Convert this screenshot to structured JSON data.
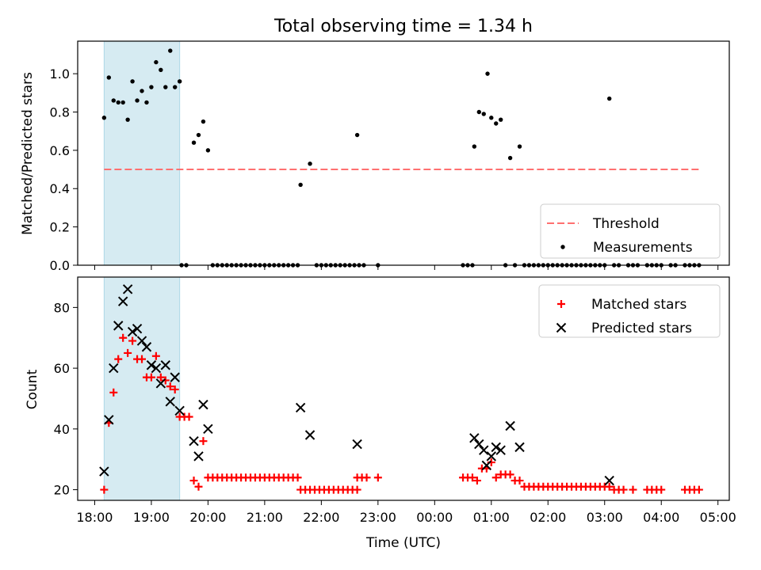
{
  "figure": {
    "title": "Total observing time = 1.34 h",
    "xlabel": "Time (UTC)",
    "x_tick_labels": [
      "18:00",
      "19:00",
      "20:00",
      "21:00",
      "22:00",
      "23:00",
      "00:00",
      "01:00",
      "02:00",
      "03:00",
      "04:00",
      "05:00"
    ],
    "shade_color": "#add8e6"
  },
  "chart_data": [
    {
      "type": "scatter",
      "ylabel": "Matched/Predicted stars",
      "ylim": [
        0,
        1.17
      ],
      "yticks": [
        0.0,
        0.2,
        0.4,
        0.6,
        0.8,
        1.0
      ],
      "ytick_labels": [
        "0.0",
        "0.2",
        "0.4",
        "0.6",
        "0.8",
        "1.0"
      ],
      "xlim": [
        "17:42",
        "05:12"
      ],
      "shaded_region": [
        "18:10",
        "19:30"
      ],
      "threshold": {
        "value": 0.5,
        "x_start": "18:10",
        "x_end": "04:40",
        "color": "#ff7070"
      },
      "legend": {
        "placement": "lower right",
        "entries": [
          "Threshold",
          "Measurements"
        ]
      },
      "series": [
        {
          "name": "Measurements",
          "color": "#000000",
          "points": [
            [
              "18:10",
              0.77
            ],
            [
              "18:15",
              0.98
            ],
            [
              "18:20",
              0.86
            ],
            [
              "18:25",
              0.85
            ],
            [
              "18:30",
              0.85
            ],
            [
              "18:35",
              0.76
            ],
            [
              "18:40",
              0.96
            ],
            [
              "18:45",
              0.86
            ],
            [
              "18:50",
              0.91
            ],
            [
              "18:55",
              0.85
            ],
            [
              "19:00",
              0.93
            ],
            [
              "19:05",
              1.06
            ],
            [
              "19:10",
              1.02
            ],
            [
              "19:15",
              0.93
            ],
            [
              "19:20",
              1.12
            ],
            [
              "19:25",
              0.93
            ],
            [
              "19:30",
              0.96
            ],
            [
              "19:32",
              0.0
            ],
            [
              "19:37",
              0.0
            ],
            [
              "19:45",
              0.64
            ],
            [
              "19:50",
              0.68
            ],
            [
              "19:55",
              0.75
            ],
            [
              "20:00",
              0.6
            ],
            [
              "20:05",
              0.0
            ],
            [
              "20:10",
              0.0
            ],
            [
              "20:15",
              0.0
            ],
            [
              "20:20",
              0.0
            ],
            [
              "20:25",
              0.0
            ],
            [
              "20:30",
              0.0
            ],
            [
              "20:35",
              0.0
            ],
            [
              "20:40",
              0.0
            ],
            [
              "20:45",
              0.0
            ],
            [
              "20:50",
              0.0
            ],
            [
              "20:55",
              0.0
            ],
            [
              "21:00",
              0.0
            ],
            [
              "21:05",
              0.0
            ],
            [
              "21:10",
              0.0
            ],
            [
              "21:15",
              0.0
            ],
            [
              "21:20",
              0.0
            ],
            [
              "21:25",
              0.0
            ],
            [
              "21:30",
              0.0
            ],
            [
              "21:35",
              0.0
            ],
            [
              "21:38",
              0.42
            ],
            [
              "21:48",
              0.53
            ],
            [
              "21:55",
              0.0
            ],
            [
              "22:00",
              0.0
            ],
            [
              "22:05",
              0.0
            ],
            [
              "22:10",
              0.0
            ],
            [
              "22:15",
              0.0
            ],
            [
              "22:20",
              0.0
            ],
            [
              "22:25",
              0.0
            ],
            [
              "22:30",
              0.0
            ],
            [
              "22:35",
              0.0
            ],
            [
              "22:40",
              0.0
            ],
            [
              "22:45",
              0.0
            ],
            [
              "22:38",
              0.68
            ],
            [
              "23:00",
              0.0
            ],
            [
              "00:30",
              0.0
            ],
            [
              "00:35",
              0.0
            ],
            [
              "00:40",
              0.0
            ],
            [
              "00:42",
              0.62
            ],
            [
              "00:47",
              0.8
            ],
            [
              "00:52",
              0.79
            ],
            [
              "00:56",
              1.0
            ],
            [
              "01:00",
              0.77
            ],
            [
              "01:05",
              0.74
            ],
            [
              "01:10",
              0.76
            ],
            [
              "01:20",
              0.56
            ],
            [
              "01:30",
              0.62
            ],
            [
              "01:15",
              0.0
            ],
            [
              "01:25",
              0.0
            ],
            [
              "01:35",
              0.0
            ],
            [
              "01:40",
              0.0
            ],
            [
              "01:45",
              0.0
            ],
            [
              "01:50",
              0.0
            ],
            [
              "01:55",
              0.0
            ],
            [
              "02:00",
              0.0
            ],
            [
              "02:05",
              0.0
            ],
            [
              "02:10",
              0.0
            ],
            [
              "02:15",
              0.0
            ],
            [
              "02:20",
              0.0
            ],
            [
              "02:25",
              0.0
            ],
            [
              "02:30",
              0.0
            ],
            [
              "02:35",
              0.0
            ],
            [
              "02:40",
              0.0
            ],
            [
              "02:45",
              0.0
            ],
            [
              "02:50",
              0.0
            ],
            [
              "02:55",
              0.0
            ],
            [
              "03:00",
              0.0
            ],
            [
              "03:05",
              0.87
            ],
            [
              "03:10",
              0.0
            ],
            [
              "03:15",
              0.0
            ],
            [
              "03:25",
              0.0
            ],
            [
              "03:30",
              0.0
            ],
            [
              "03:35",
              0.0
            ],
            [
              "03:45",
              0.0
            ],
            [
              "03:50",
              0.0
            ],
            [
              "03:55",
              0.0
            ],
            [
              "04:00",
              0.0
            ],
            [
              "04:10",
              0.0
            ],
            [
              "04:15",
              0.0
            ],
            [
              "04:25",
              0.0
            ],
            [
              "04:30",
              0.0
            ],
            [
              "04:35",
              0.0
            ],
            [
              "04:40",
              0.0
            ]
          ]
        }
      ]
    },
    {
      "type": "scatter",
      "ylabel": "Count",
      "ylim": [
        16.5,
        90
      ],
      "yticks": [
        20,
        40,
        60,
        80
      ],
      "ytick_labels": [
        "20",
        "40",
        "60",
        "80"
      ],
      "xlim": [
        "17:42",
        "05:12"
      ],
      "shaded_region": [
        "18:10",
        "19:30"
      ],
      "legend": {
        "placement": "upper right",
        "entries": [
          "Matched stars",
          "Predicted stars"
        ]
      },
      "series": [
        {
          "name": "Matched stars",
          "marker": "plus",
          "color": "#ff0000",
          "points": [
            [
              "18:10",
              20
            ],
            [
              "18:15",
              42
            ],
            [
              "18:20",
              52
            ],
            [
              "18:25",
              63
            ],
            [
              "18:30",
              70
            ],
            [
              "18:35",
              65
            ],
            [
              "18:40",
              69
            ],
            [
              "18:45",
              63
            ],
            [
              "18:50",
              63
            ],
            [
              "18:55",
              57
            ],
            [
              "19:00",
              57
            ],
            [
              "19:05",
              64
            ],
            [
              "19:10",
              57
            ],
            [
              "19:15",
              56
            ],
            [
              "19:20",
              54
            ],
            [
              "19:25",
              53
            ],
            [
              "19:30",
              44
            ],
            [
              "19:35",
              44
            ],
            [
              "19:40",
              44
            ],
            [
              "19:45",
              23
            ],
            [
              "19:50",
              21
            ],
            [
              "19:55",
              36
            ],
            [
              "20:00",
              24
            ],
            [
              "20:05",
              24
            ],
            [
              "20:10",
              24
            ],
            [
              "20:15",
              24
            ],
            [
              "20:20",
              24
            ],
            [
              "20:25",
              24
            ],
            [
              "20:30",
              24
            ],
            [
              "20:35",
              24
            ],
            [
              "20:40",
              24
            ],
            [
              "20:45",
              24
            ],
            [
              "20:50",
              24
            ],
            [
              "20:55",
              24
            ],
            [
              "21:00",
              24
            ],
            [
              "21:05",
              24
            ],
            [
              "21:10",
              24
            ],
            [
              "21:15",
              24
            ],
            [
              "21:20",
              24
            ],
            [
              "21:25",
              24
            ],
            [
              "21:30",
              24
            ],
            [
              "21:35",
              24
            ],
            [
              "21:38",
              20
            ],
            [
              "21:43",
              20
            ],
            [
              "21:48",
              20
            ],
            [
              "21:53",
              20
            ],
            [
              "21:58",
              20
            ],
            [
              "22:03",
              20
            ],
            [
              "22:08",
              20
            ],
            [
              "22:13",
              20
            ],
            [
              "22:18",
              20
            ],
            [
              "22:23",
              20
            ],
            [
              "22:28",
              20
            ],
            [
              "22:33",
              20
            ],
            [
              "22:38",
              20
            ],
            [
              "22:38",
              24
            ],
            [
              "22:43",
              24
            ],
            [
              "22:48",
              24
            ],
            [
              "23:00",
              24
            ],
            [
              "00:30",
              24
            ],
            [
              "00:35",
              24
            ],
            [
              "00:40",
              24
            ],
            [
              "00:45",
              23
            ],
            [
              "00:50",
              27
            ],
            [
              "00:55",
              27
            ],
            [
              "01:00",
              29
            ],
            [
              "01:05",
              24
            ],
            [
              "01:10",
              25
            ],
            [
              "01:15",
              25
            ],
            [
              "01:20",
              25
            ],
            [
              "01:25",
              23
            ],
            [
              "01:30",
              23
            ],
            [
              "01:35",
              21
            ],
            [
              "01:40",
              21
            ],
            [
              "01:45",
              21
            ],
            [
              "01:50",
              21
            ],
            [
              "01:55",
              21
            ],
            [
              "02:00",
              21
            ],
            [
              "02:05",
              21
            ],
            [
              "02:10",
              21
            ],
            [
              "02:15",
              21
            ],
            [
              "02:20",
              21
            ],
            [
              "02:25",
              21
            ],
            [
              "02:30",
              21
            ],
            [
              "02:35",
              21
            ],
            [
              "02:40",
              21
            ],
            [
              "02:45",
              21
            ],
            [
              "02:50",
              21
            ],
            [
              "02:55",
              21
            ],
            [
              "03:00",
              21
            ],
            [
              "03:05",
              21
            ],
            [
              "03:10",
              20
            ],
            [
              "03:15",
              20
            ],
            [
              "03:20",
              20
            ],
            [
              "03:30",
              20
            ],
            [
              "03:45",
              20
            ],
            [
              "03:50",
              20
            ],
            [
              "03:55",
              20
            ],
            [
              "04:00",
              20
            ],
            [
              "04:25",
              20
            ],
            [
              "04:30",
              20
            ],
            [
              "04:35",
              20
            ],
            [
              "04:40",
              20
            ]
          ]
        },
        {
          "name": "Predicted stars",
          "marker": "x",
          "color": "#000000",
          "points": [
            [
              "18:10",
              26
            ],
            [
              "18:15",
              43
            ],
            [
              "18:20",
              60
            ],
            [
              "18:25",
              74
            ],
            [
              "18:30",
              82
            ],
            [
              "18:35",
              86
            ],
            [
              "18:40",
              72
            ],
            [
              "18:45",
              73
            ],
            [
              "18:50",
              69
            ],
            [
              "18:55",
              67
            ],
            [
              "19:00",
              61
            ],
            [
              "19:05",
              60
            ],
            [
              "19:10",
              55
            ],
            [
              "19:15",
              61
            ],
            [
              "19:20",
              49
            ],
            [
              "19:25",
              57
            ],
            [
              "19:30",
              46
            ],
            [
              "19:45",
              36
            ],
            [
              "19:50",
              31
            ],
            [
              "19:55",
              48
            ],
            [
              "20:00",
              40
            ],
            [
              "21:38",
              47
            ],
            [
              "21:48",
              38
            ],
            [
              "22:38",
              35
            ],
            [
              "00:42",
              37
            ],
            [
              "00:47",
              35
            ],
            [
              "00:52",
              33
            ],
            [
              "00:55",
              28
            ],
            [
              "01:00",
              31
            ],
            [
              "01:05",
              34
            ],
            [
              "01:10",
              33
            ],
            [
              "01:20",
              41
            ],
            [
              "01:30",
              34
            ],
            [
              "03:05",
              23
            ]
          ]
        }
      ]
    }
  ]
}
